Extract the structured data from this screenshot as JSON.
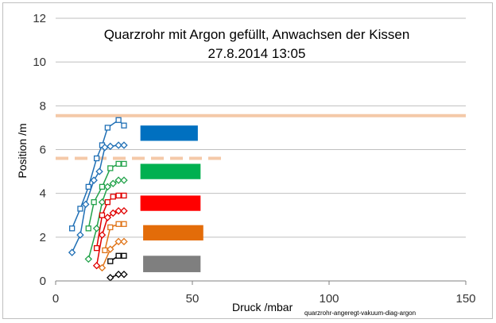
{
  "chart_data": {
    "type": "line",
    "title": "Quarzrohr mit Argon gefüllt, Anwachsen der Kissen",
    "subtitle": "27.8.2014   13:05",
    "xlabel": "Druck /mbar",
    "ylabel": "Position /m",
    "annotation": "quarzrohr-angeregt-vakuum-diag-argon",
    "xlim": [
      0,
      150
    ],
    "ylim": [
      0,
      12
    ],
    "xticks": [
      "0",
      "50",
      "100",
      "150"
    ],
    "yticks": [
      "0",
      "2",
      "4",
      "6",
      "8",
      "10",
      "12"
    ],
    "grid": "horizontal",
    "series": [
      {
        "color": "#1f6fb5",
        "marker": "square",
        "x": [
          6,
          9,
          12,
          15,
          17,
          19,
          23,
          25
        ],
        "y": [
          2.4,
          3.3,
          4.3,
          5.6,
          6.2,
          7.0,
          7.35,
          7.1
        ]
      },
      {
        "color": "#1f6fb5",
        "marker": "diamond",
        "x": [
          6,
          9,
          11,
          14,
          16,
          18,
          20,
          23,
          25
        ],
        "y": [
          1.3,
          2.1,
          3.5,
          4.6,
          5.0,
          6.1,
          6.15,
          6.2,
          6.2
        ]
      },
      {
        "color": "#22a24a",
        "marker": "square",
        "x": [
          12,
          14,
          17,
          20,
          23,
          25
        ],
        "y": [
          2.4,
          3.6,
          4.3,
          5.15,
          5.35,
          5.35
        ]
      },
      {
        "color": "#22a24a",
        "marker": "diamond",
        "x": [
          12,
          15,
          17,
          19,
          21,
          23,
          25
        ],
        "y": [
          1.0,
          2.4,
          3.6,
          4.3,
          4.45,
          4.6,
          4.6
        ]
      },
      {
        "color": "#e00000",
        "marker": "square",
        "x": [
          15,
          17,
          19,
          21,
          23,
          25
        ],
        "y": [
          1.5,
          3.0,
          3.6,
          3.85,
          3.9,
          3.9
        ]
      },
      {
        "color": "#e00000",
        "marker": "diamond",
        "x": [
          15,
          17,
          19,
          21,
          23,
          25
        ],
        "y": [
          0.7,
          2.1,
          2.9,
          3.1,
          3.2,
          3.2
        ]
      },
      {
        "color": "#e07418",
        "marker": "square",
        "x": [
          18,
          20,
          23,
          25
        ],
        "y": [
          1.4,
          2.45,
          2.6,
          2.6
        ]
      },
      {
        "color": "#e07418",
        "marker": "diamond",
        "x": [
          17,
          20,
          23,
          25
        ],
        "y": [
          0.6,
          1.45,
          1.8,
          1.8
        ]
      },
      {
        "color": "#000000",
        "marker": "square",
        "x": [
          20,
          23,
          25
        ],
        "y": [
          0.9,
          1.15,
          1.15
        ]
      },
      {
        "color": "#000000",
        "marker": "diamond",
        "x": [
          20,
          23,
          25
        ],
        "y": [
          0.15,
          0.3,
          0.3
        ]
      }
    ],
    "reference_lines": [
      {
        "y": 7.55,
        "x_from": 0,
        "x_to": 150,
        "style": "solid",
        "color": "#f4c9a8"
      },
      {
        "y": 5.6,
        "x_from": 0,
        "x_to": 61,
        "style": "dashed",
        "color": "#f4c9a8"
      }
    ],
    "legend_boxes": [
      {
        "color": "#0070c0",
        "x_from": 31,
        "x_to": 52,
        "y_from": 6.4,
        "y_to": 7.1
      },
      {
        "color": "#00b050",
        "x_from": 31,
        "x_to": 53,
        "y_from": 4.65,
        "y_to": 5.35
      },
      {
        "color": "#ff0000",
        "x_from": 31,
        "x_to": 53,
        "y_from": 3.2,
        "y_to": 3.9
      },
      {
        "color": "#e36c09",
        "x_from": 32,
        "x_to": 54,
        "y_from": 1.85,
        "y_to": 2.55
      },
      {
        "color": "#7f7f7f",
        "x_from": 32,
        "x_to": 53,
        "y_from": 0.4,
        "y_to": 1.15
      }
    ]
  }
}
